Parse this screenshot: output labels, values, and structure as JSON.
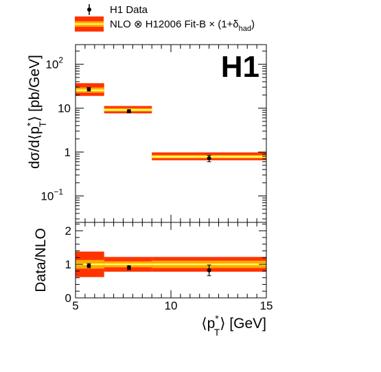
{
  "chart_data": [
    {
      "type": "scatter",
      "panel": "main",
      "x_bins": [
        [
          5,
          6.5
        ],
        [
          6.5,
          9
        ],
        [
          9,
          15
        ]
      ],
      "series": [
        {
          "name": "H1 Data",
          "x": [
            5.7,
            7.8,
            12
          ],
          "y": [
            27,
            8.5,
            0.72
          ],
          "y_err_low": [
            2.5,
            0.7,
            0.12
          ],
          "y_err_high": [
            2.5,
            0.7,
            0.12
          ]
        },
        {
          "name": "NLO ⊗ H12006 Fit-B × (1+δhad)",
          "kind": "band",
          "bands": [
            {
              "x_range": [
                5,
                6.5
              ],
              "outer": [
                19,
                37
              ],
              "inner": [
                22.5,
                29.5
              ],
              "center": 25.5
            },
            {
              "x_range": [
                6.5,
                9
              ],
              "outer": [
                7.6,
                11.2
              ],
              "inner": [
                8.4,
                10.0
              ],
              "center": 9.1
            },
            {
              "x_range": [
                9,
                15
              ],
              "outer": [
                0.65,
                0.98
              ],
              "inner": [
                0.72,
                0.86
              ],
              "center": 0.78
            }
          ]
        }
      ],
      "ylabel_parts": {
        "main": "dσ/d⟨p",
        "sup": "*",
        "sub": "T",
        "close": "⟩ [pb/GeV]"
      },
      "yscale": "log",
      "xlim": [
        5,
        15
      ],
      "ylim": [
        0.025,
        280
      ],
      "y_ticks": [
        {
          "value": 0.1,
          "base": "10",
          "exp": "−1"
        },
        {
          "value": 1,
          "base": "1",
          "exp": ""
        },
        {
          "value": 10,
          "base": "10",
          "exp": ""
        },
        {
          "value": 100,
          "base": "10",
          "exp": "2"
        }
      ]
    },
    {
      "type": "scatter",
      "panel": "ratio",
      "x_bins": [
        [
          5,
          6.5
        ],
        [
          6.5,
          9
        ],
        [
          9,
          15
        ]
      ],
      "series": [
        {
          "name": "H1 Data",
          "x": [
            5.7,
            7.8,
            12
          ],
          "y": [
            0.96,
            0.9,
            0.82
          ],
          "y_err_low": [
            0.06,
            0.06,
            0.16
          ],
          "y_err_high": [
            0.06,
            0.06,
            0.16
          ]
        },
        {
          "name": "NLO ⊗ H12006 Fit-B × (1+δhad)",
          "kind": "band",
          "bands": [
            {
              "x_range": [
                5,
                6.5
              ],
              "outer": [
                0.62,
                1.38
              ],
              "inner": [
                0.87,
                1.13
              ],
              "center": 1.0
            },
            {
              "x_range": [
                6.5,
                9
              ],
              "outer": [
                0.78,
                1.22
              ],
              "inner": [
                0.91,
                1.09
              ],
              "center": 1.0
            },
            {
              "x_range": [
                9,
                15
              ],
              "outer": [
                0.78,
                1.22
              ],
              "inner": [
                0.89,
                1.11
              ],
              "center": 1.0
            }
          ]
        }
      ],
      "xlabel_parts": {
        "main": "⟨p",
        "sup": "*",
        "sub": "T",
        "close": "⟩ [GeV]"
      },
      "ylabel": "Data/NLO",
      "xlim": [
        5,
        15
      ],
      "ylim": [
        0,
        2.25
      ],
      "x_ticks": [
        5,
        10,
        15
      ],
      "y_ticks": [
        0,
        1,
        2
      ]
    }
  ],
  "legend": {
    "data_label": "H1 Data",
    "band_label": "NLO ⊗ H12006 Fit-B × (1+δ",
    "band_sub": "had",
    "band_close": ")"
  },
  "logo": "H1",
  "colors": {
    "outer_band": "#ff3300",
    "inner_band": "#ffaa00",
    "center_line": "#ffff66",
    "data": "#000000",
    "axes": "#000000"
  }
}
